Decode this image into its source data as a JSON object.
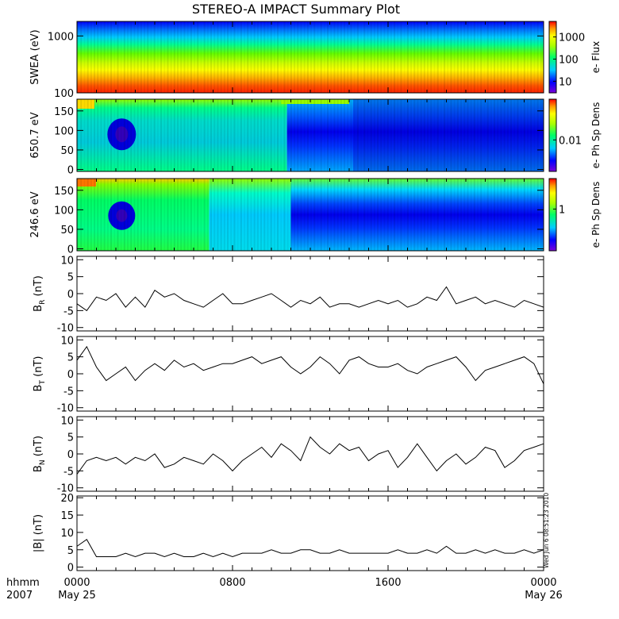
{
  "title": "STEREO-A IMPACT Summary Plot",
  "stamp": "Wed Jun  6 08:51:23 2010",
  "time_axis": {
    "unit_label": "hhmm",
    "year_label": "2007",
    "ticks": [
      {
        "hour": 0,
        "text": "0000",
        "sub": "May 25"
      },
      {
        "hour": 8,
        "text": "0800",
        "sub": ""
      },
      {
        "hour": 16,
        "text": "1600",
        "sub": ""
      },
      {
        "hour": 24,
        "text": "0000",
        "sub": "May 26"
      }
    ],
    "range_hours": [
      0,
      24
    ]
  },
  "chart_data": [
    {
      "type": "heatmap",
      "ylabel": "SWEA (eV)",
      "yscale": "log",
      "ylim": [
        100,
        1800
      ],
      "yticks": [
        {
          "v": 100,
          "t": "100"
        },
        {
          "v": 1000,
          "t": "1000"
        }
      ],
      "colorbar": {
        "label": "e- Flux",
        "scale": "log",
        "range": [
          3,
          5000
        ],
        "ticks": [
          {
            "v": 10,
            "t": "10"
          },
          {
            "v": 100,
            "t": "100"
          },
          {
            "v": 1000,
            "t": "1000"
          }
        ]
      }
    },
    {
      "type": "heatmap",
      "ylabel": "650.7 eV",
      "ylim": [
        -5,
        180
      ],
      "yticks": [
        {
          "v": 0,
          "t": "0"
        },
        {
          "v": 50,
          "t": "50"
        },
        {
          "v": 100,
          "t": "100"
        },
        {
          "v": 150,
          "t": "150"
        }
      ],
      "colorbar": {
        "label": "e- Ph Sp Dens",
        "scale": "log",
        "range": [
          0.002,
          0.08
        ],
        "ticks": [
          {
            "v": 0.01,
            "t": "0.01"
          }
        ]
      }
    },
    {
      "type": "heatmap",
      "ylabel": "246.6 eV",
      "ylim": [
        -5,
        180
      ],
      "yticks": [
        {
          "v": 0,
          "t": "0"
        },
        {
          "v": 50,
          "t": "50"
        },
        {
          "v": 100,
          "t": "100"
        },
        {
          "v": 150,
          "t": "150"
        }
      ],
      "colorbar": {
        "label": "e- Ph Sp Dens",
        "scale": "log",
        "range": [
          0.15,
          4
        ],
        "ticks": [
          {
            "v": 1,
            "t": "1"
          }
        ]
      }
    },
    {
      "type": "line",
      "ylabel": "B",
      "ylabel_sub": "R",
      "ylabel_unit": " (nT)",
      "ylim": [
        -11,
        11
      ],
      "yticks": [
        {
          "v": -10,
          "t": "-10"
        },
        {
          "v": -5,
          "t": "-5"
        },
        {
          "v": 0,
          "t": "0"
        },
        {
          "v": 5,
          "t": "5"
        },
        {
          "v": 10,
          "t": "10"
        }
      ],
      "x": [
        0,
        0.5,
        1,
        1.5,
        2,
        2.5,
        3,
        3.5,
        4,
        4.5,
        5,
        5.5,
        6,
        6.5,
        7,
        7.5,
        8,
        8.5,
        9,
        9.5,
        10,
        10.5,
        11,
        11.5,
        12,
        12.5,
        13,
        13.5,
        14,
        14.5,
        15,
        15.5,
        16,
        16.5,
        17,
        17.5,
        18,
        18.5,
        19,
        19.5,
        20,
        20.5,
        21,
        21.5,
        22,
        22.5,
        23,
        23.5,
        24
      ],
      "values": [
        -3,
        -5,
        -1,
        -2,
        0,
        -4,
        -1,
        -4,
        1,
        -1,
        0,
        -2,
        -3,
        -4,
        -2,
        0,
        -3,
        -3,
        -2,
        -1,
        0,
        -2,
        -4,
        -2,
        -3,
        -1,
        -4,
        -3,
        -3,
        -4,
        -3,
        -2,
        -3,
        -2,
        -4,
        -3,
        -1,
        -2,
        2,
        -3,
        -2,
        -1,
        -3,
        -2,
        -3,
        -4,
        -2,
        -3,
        -4
      ]
    },
    {
      "type": "line",
      "ylabel": "B",
      "ylabel_sub": "T",
      "ylabel_unit": " (nT)",
      "ylim": [
        -11,
        11
      ],
      "yticks": [
        {
          "v": -10,
          "t": "-10"
        },
        {
          "v": -5,
          "t": "-5"
        },
        {
          "v": 0,
          "t": "0"
        },
        {
          "v": 5,
          "t": "5"
        },
        {
          "v": 10,
          "t": "10"
        }
      ],
      "x": [
        0,
        0.5,
        1,
        1.5,
        2,
        2.5,
        3,
        3.5,
        4,
        4.5,
        5,
        5.5,
        6,
        6.5,
        7,
        7.5,
        8,
        8.5,
        9,
        9.5,
        10,
        10.5,
        11,
        11.5,
        12,
        12.5,
        13,
        13.5,
        14,
        14.5,
        15,
        15.5,
        16,
        16.5,
        17,
        17.5,
        18,
        18.5,
        19,
        19.5,
        20,
        20.5,
        21,
        21.5,
        22,
        22.5,
        23,
        23.5,
        24
      ],
      "values": [
        4,
        8,
        2,
        -2,
        0,
        2,
        -2,
        1,
        3,
        1,
        4,
        2,
        3,
        1,
        2,
        3,
        3,
        4,
        5,
        3,
        4,
        5,
        2,
        0,
        2,
        5,
        3,
        0,
        4,
        5,
        3,
        2,
        2,
        3,
        1,
        0,
        2,
        3,
        4,
        5,
        2,
        -2,
        1,
        2,
        3,
        4,
        5,
        3,
        -3
      ]
    },
    {
      "type": "line",
      "ylabel": "B",
      "ylabel_sub": "N",
      "ylabel_unit": " (nT)",
      "ylim": [
        -11,
        11
      ],
      "yticks": [
        {
          "v": -10,
          "t": "-10"
        },
        {
          "v": -5,
          "t": "-5"
        },
        {
          "v": 0,
          "t": "0"
        },
        {
          "v": 5,
          "t": "5"
        },
        {
          "v": 10,
          "t": "10"
        }
      ],
      "x": [
        0,
        0.5,
        1,
        1.5,
        2,
        2.5,
        3,
        3.5,
        4,
        4.5,
        5,
        5.5,
        6,
        6.5,
        7,
        7.5,
        8,
        8.5,
        9,
        9.5,
        10,
        10.5,
        11,
        11.5,
        12,
        12.5,
        13,
        13.5,
        14,
        14.5,
        15,
        15.5,
        16,
        16.5,
        17,
        17.5,
        18,
        18.5,
        19,
        19.5,
        20,
        20.5,
        21,
        21.5,
        22,
        22.5,
        23,
        23.5,
        24
      ],
      "values": [
        -6,
        -2,
        -1,
        -2,
        -1,
        -3,
        -1,
        -2,
        0,
        -4,
        -3,
        -1,
        -2,
        -3,
        0,
        -2,
        -5,
        -2,
        0,
        2,
        -1,
        3,
        1,
        -2,
        5,
        2,
        0,
        3,
        1,
        2,
        -2,
        0,
        1,
        -4,
        -1,
        3,
        -1,
        -5,
        -2,
        0,
        -3,
        -1,
        2,
        1,
        -4,
        -2,
        1,
        2,
        3
      ]
    },
    {
      "type": "line",
      "ylabel": "|B| (nT)",
      "ylim": [
        -1,
        20.5
      ],
      "yticks": [
        {
          "v": 0,
          "t": "0"
        },
        {
          "v": 5,
          "t": "5"
        },
        {
          "v": 10,
          "t": "10"
        },
        {
          "v": 15,
          "t": "15"
        },
        {
          "v": 20,
          "t": "20"
        }
      ],
      "x": [
        0,
        0.5,
        1,
        1.5,
        2,
        2.5,
        3,
        3.5,
        4,
        4.5,
        5,
        5.5,
        6,
        6.5,
        7,
        7.5,
        8,
        8.5,
        9,
        9.5,
        10,
        10.5,
        11,
        11.5,
        12,
        12.5,
        13,
        13.5,
        14,
        14.5,
        15,
        15.5,
        16,
        16.5,
        17,
        17.5,
        18,
        18.5,
        19,
        19.5,
        20,
        20.5,
        21,
        21.5,
        22,
        22.5,
        23,
        23.5,
        24
      ],
      "values": [
        6,
        8,
        3,
        3,
        3,
        4,
        3,
        4,
        4,
        3,
        4,
        3,
        3,
        4,
        3,
        4,
        3,
        4,
        4,
        4,
        5,
        4,
        4,
        5,
        5,
        4,
        4,
        5,
        4,
        4,
        4,
        4,
        4,
        5,
        4,
        4,
        5,
        4,
        6,
        4,
        4,
        5,
        4,
        5,
        4,
        4,
        5,
        4,
        5
      ]
    }
  ]
}
